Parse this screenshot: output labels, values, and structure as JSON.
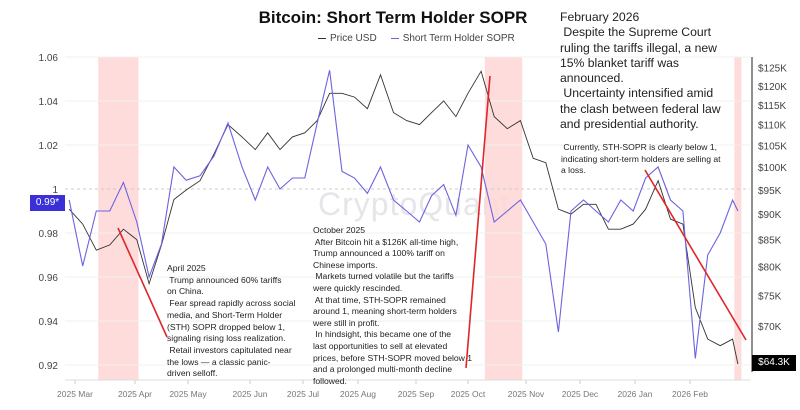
{
  "chart_data": {
    "type": "line",
    "title": "Bitcoin: Short Term Holder SOPR",
    "legend_placement": "top-center",
    "grid": true,
    "colors": {
      "price": "#333333",
      "sopr": "#6b63e0",
      "band": "#ffd6d6",
      "arrow": "#e0262a",
      "current_sopr_badge": "#3b2fd8"
    },
    "x_ticks": [
      "2025 Mar",
      "2025 Apr",
      "2025 May",
      "2025 Jun",
      "2025 Jul",
      "2025 Aug",
      "2025 Sep",
      "2025 Oct",
      "2025 Nov",
      "2025 Dec",
      "2026 Jan",
      "2026 Feb"
    ],
    "y_left": {
      "ticks": [
        "1.06",
        "1.04",
        "1.02",
        "1",
        "0.98",
        "0.96",
        "0.94",
        "0.92"
      ],
      "range": [
        0.92,
        1.06
      ],
      "reference_line": 1
    },
    "y_right": {
      "scale": "log",
      "ticks": [
        "$125K",
        "$120K",
        "$115K",
        "$110K",
        "$105K",
        "$100K",
        "$95K",
        "$90K",
        "$85K",
        "$80K",
        "$75K",
        "$70K"
      ]
    },
    "current_sopr_label": "0.99*",
    "current_price_label": "$64.3K",
    "highlight_bands": [
      [
        "2025-03-13",
        "2025-04-03"
      ],
      [
        "2025-10-10",
        "2025-10-30"
      ],
      [
        "2026-02-26",
        "2026-03-02"
      ]
    ],
    "x": [
      "2025-02-26",
      "2025-03-05",
      "2025-03-12",
      "2025-03-19",
      "2025-03-26",
      "2025-04-02",
      "2025-04-09",
      "2025-04-16",
      "2025-04-23",
      "2025-04-30",
      "2025-05-07",
      "2025-05-14",
      "2025-05-21",
      "2025-05-28",
      "2025-06-04",
      "2025-06-11",
      "2025-06-18",
      "2025-06-25",
      "2025-07-02",
      "2025-07-09",
      "2025-07-16",
      "2025-07-23",
      "2025-07-30",
      "2025-08-06",
      "2025-08-13",
      "2025-08-20",
      "2025-08-27",
      "2025-09-03",
      "2025-09-10",
      "2025-09-17",
      "2025-09-24",
      "2025-10-01",
      "2025-10-08",
      "2025-10-15",
      "2025-10-22",
      "2025-10-29",
      "2025-11-05",
      "2025-11-12",
      "2025-11-19",
      "2025-11-26",
      "2025-12-03",
      "2025-12-10",
      "2025-12-17",
      "2025-12-24",
      "2025-12-31",
      "2026-01-07",
      "2026-01-14",
      "2026-01-21",
      "2026-01-28",
      "2026-02-04",
      "2026-02-11",
      "2026-02-18",
      "2026-02-25",
      "2026-02-28"
    ],
    "series": [
      {
        "name": "Price USD",
        "axis": "right",
        "values": [
          91000,
          88000,
          83000,
          84000,
          87000,
          85000,
          77000,
          84000,
          93000,
          95000,
          97000,
          103000,
          110000,
          107000,
          104000,
          108000,
          104000,
          107000,
          108000,
          111000,
          118000,
          118000,
          117000,
          114000,
          123000,
          113000,
          111000,
          110000,
          113000,
          116000,
          112000,
          118000,
          124000,
          112000,
          109000,
          111000,
          102000,
          101000,
          91000,
          90000,
          92000,
          92000,
          87000,
          87000,
          88000,
          91000,
          97000,
          89000,
          88000,
          73000,
          68000,
          67000,
          68000,
          64300
        ]
      },
      {
        "name": "Short Term Holder SOPR",
        "axis": "left",
        "values": [
          0.995,
          0.965,
          0.99,
          0.99,
          1.003,
          0.985,
          0.96,
          0.975,
          1.01,
          1.004,
          1.006,
          1.015,
          1.03,
          1.01,
          0.995,
          1.01,
          1.0,
          1.005,
          1.005,
          1.03,
          1.054,
          1.008,
          1.005,
          0.998,
          1.01,
          0.995,
          0.99,
          0.985,
          0.997,
          1.002,
          0.988,
          1.02,
          1.01,
          0.985,
          0.99,
          0.995,
          0.985,
          0.975,
          0.935,
          0.99,
          0.995,
          0.99,
          0.985,
          0.995,
          0.99,
          1.005,
          1.01,
          0.995,
          0.99,
          0.923,
          0.97,
          0.98,
          0.995,
          0.99
        ]
      }
    ]
  },
  "annotations": {
    "february_2026": "February 2026\n Despite the Supreme Court\nruling the tariffs illegal, a new\n15% blanket tariff was\nannounced.\n Uncertainty intensified amid\nthe clash between federal law\nand presidential authority.",
    "currently": " Currently, STH-SOPR is clearly below 1,\nindicating short-term holders are selling at\na loss.",
    "april_2025": "April 2025\n Trump announced 60% tariffs\non China.\n Fear spread rapidly across social\nmedia, and Short-Term Holder\n(STH) SOPR dropped below 1,\nsignaling rising loss realization.\n Retail investors capitulated near\nthe lows — a classic panic-\ndriven selloff.",
    "october_2025": "October 2025\n After Bitcoin hit a $126K all-time high,\nTrump announced a 100% tariff on\nChinese imports.\n Markets turned volatile but the tariffs\nwere quickly rescinded.\n At that time, STH-SOPR remained\naround 1, meaning short-term holders\nwere still in profit.\n In hindsight, this became one of the\nlast opportunities to sell at elevated\nprices, before STH-SOPR moved below 1\nand a prolonged multi-month decline\nfollowed."
  },
  "watermark": "CryptoQuant"
}
